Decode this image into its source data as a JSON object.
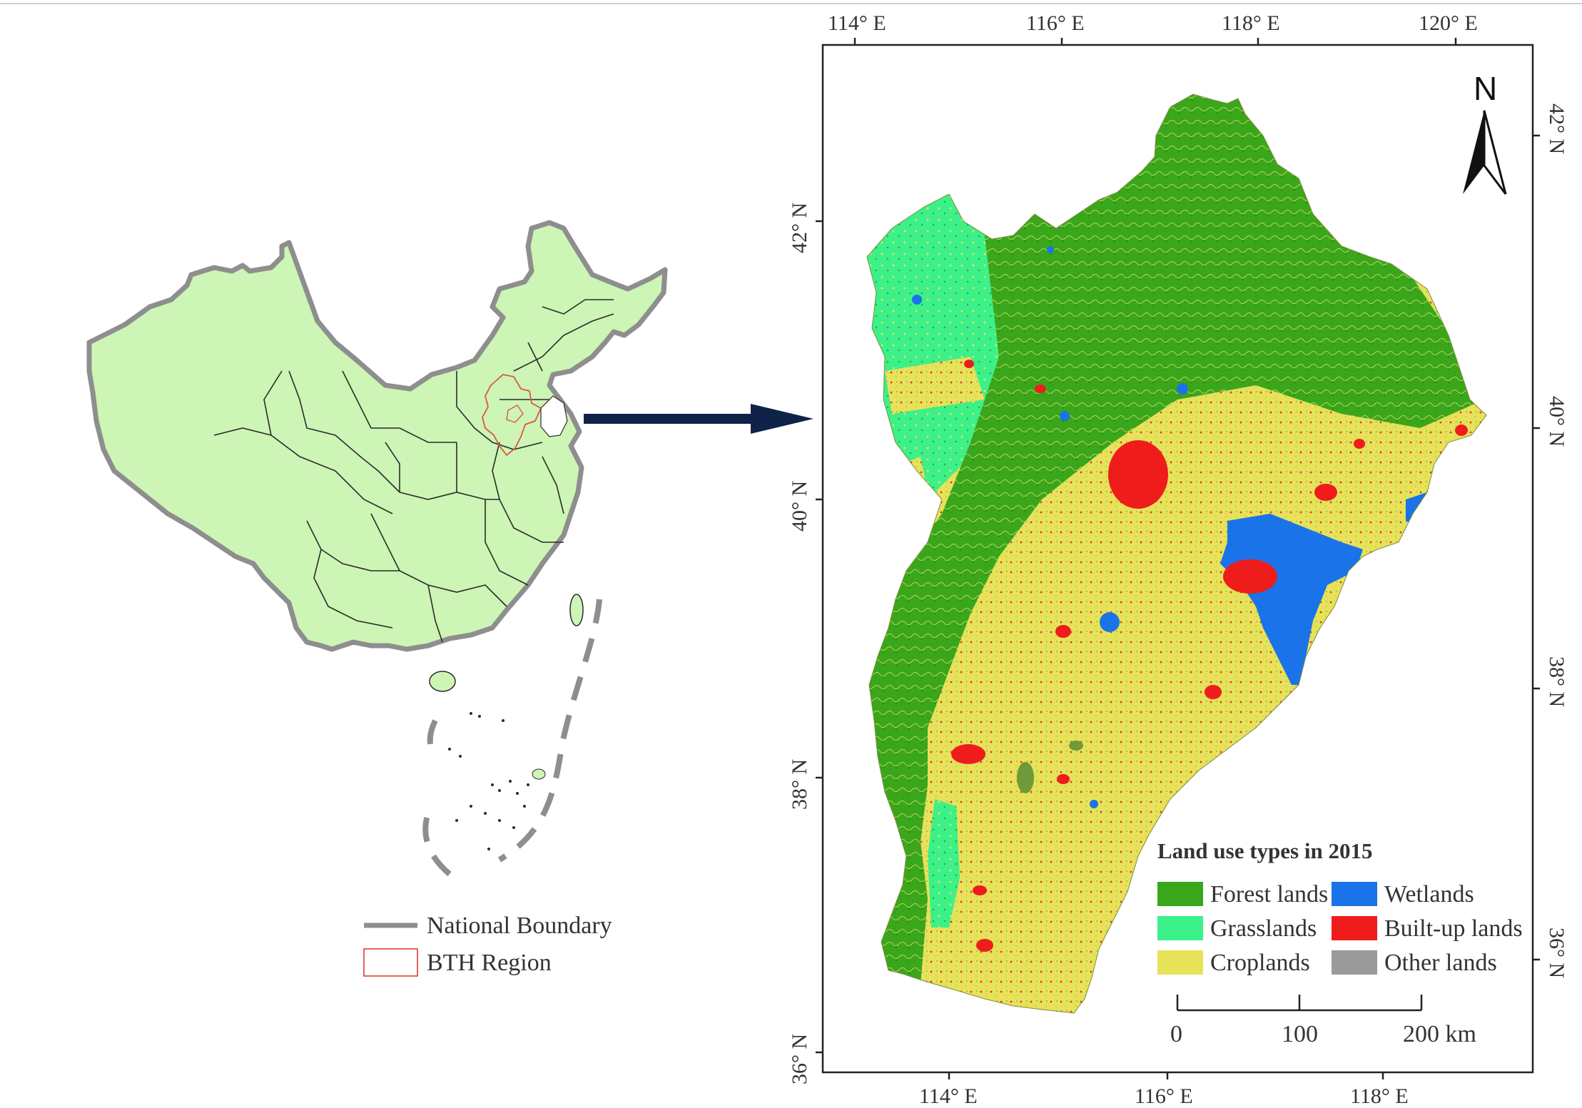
{
  "left_map": {
    "legend": {
      "national_boundary": "National Boundary",
      "bth_region": "BTH Region"
    }
  },
  "right_map": {
    "top_lon_ticks": [
      "114° E",
      "116° E",
      "118° E",
      "120° E"
    ],
    "bottom_lon_ticks": [
      "114° E",
      "116° E",
      "118° E"
    ],
    "left_lat_ticks": [
      "42° N",
      "40° N",
      "38° N",
      "36° N"
    ],
    "right_lat_ticks": [
      "42° N",
      "40° N",
      "38° N",
      "36° N"
    ],
    "north_arrow": "N",
    "legend": {
      "title": "Land use types in 2015",
      "items": [
        {
          "label": "Forest lands",
          "color": "#3aa61b"
        },
        {
          "label": "Wetlands",
          "color": "#1a73e8"
        },
        {
          "label": "Grasslands",
          "color": "#3cf08a"
        },
        {
          "label": "Built-up lands",
          "color": "#ef1c1c"
        },
        {
          "label": "Croplands",
          "color": "#e6e25a"
        },
        {
          "label": "Other lands",
          "color": "#9a9a9a"
        }
      ]
    },
    "scale_bar": {
      "labels": [
        "0",
        "100",
        "200 km"
      ]
    }
  },
  "colors": {
    "china_fill": "#cdf5b5",
    "national_boundary": "#8e8e8e",
    "bth_outline": "#e0534b",
    "arrow": "#0f2248",
    "forest": "#3aa61b",
    "cropland": "#e6e25a",
    "grassland": "#3cf08a",
    "wetland": "#1a73e8",
    "builtup": "#ef1c1c"
  }
}
